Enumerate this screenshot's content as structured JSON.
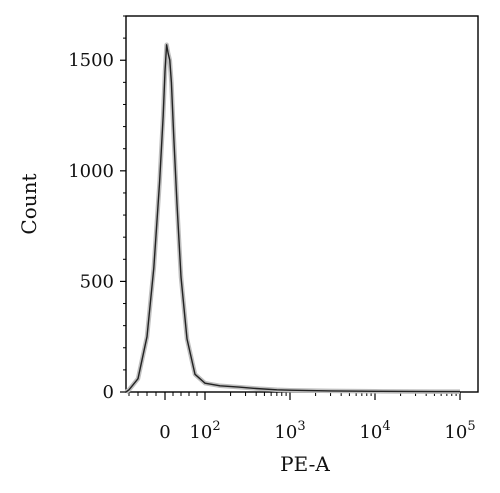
{
  "chart_data": {
    "type": "area",
    "xlabel": "PE-A",
    "ylabel": "Count",
    "x_scale": "biexponential",
    "ylim": [
      0,
      1700
    ],
    "y_ticks": [
      {
        "value": 0,
        "label": "0"
      },
      {
        "value": 500,
        "label": "500"
      },
      {
        "value": 1000,
        "label": "1000"
      },
      {
        "value": 1500,
        "label": "1500"
      }
    ],
    "x_ticks": [
      {
        "value": 0,
        "base": "0",
        "exp": ""
      },
      {
        "value": 100,
        "base": "10",
        "exp": "2"
      },
      {
        "value": 1000,
        "base": "10",
        "exp": "3"
      },
      {
        "value": 10000,
        "base": "10",
        "exp": "4"
      },
      {
        "value": 100000,
        "base": "10",
        "exp": "5"
      }
    ],
    "series": [
      {
        "points": [
          [
            -120,
            0
          ],
          [
            -80,
            10
          ],
          [
            -60,
            60
          ],
          [
            -40,
            250
          ],
          [
            -25,
            560
          ],
          [
            -12,
            950
          ],
          [
            -4,
            1250
          ],
          [
            0,
            1450
          ],
          [
            4,
            1570
          ],
          [
            8,
            1530
          ],
          [
            12,
            1500
          ],
          [
            16,
            1400
          ],
          [
            22,
            1150
          ],
          [
            30,
            850
          ],
          [
            40,
            520
          ],
          [
            55,
            240
          ],
          [
            75,
            80
          ],
          [
            100,
            40
          ],
          [
            150,
            28
          ],
          [
            250,
            22
          ],
          [
            400,
            16
          ],
          [
            700,
            10
          ],
          [
            1000,
            8
          ],
          [
            3000,
            5
          ],
          [
            10000,
            3
          ],
          [
            50000,
            2
          ],
          [
            100000,
            2
          ],
          [
            200000,
            1
          ]
        ],
        "color": "#222222"
      }
    ]
  }
}
